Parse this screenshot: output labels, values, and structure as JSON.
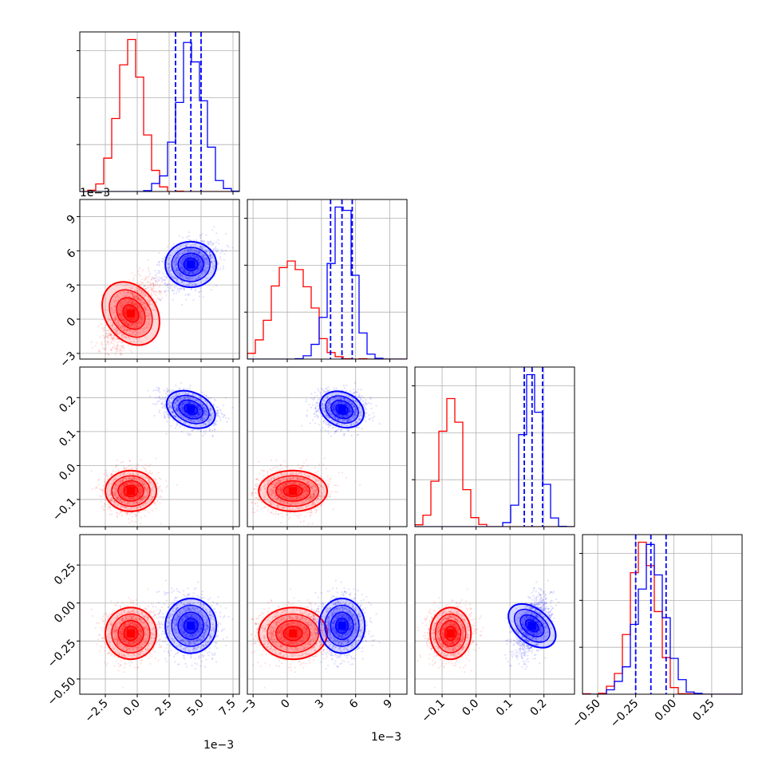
{
  "colors": {
    "red": "#ff0000",
    "blue": "#0000ff",
    "grid": "#b0b0b0",
    "axis": "#000000"
  },
  "chart_data": {
    "type": "corner",
    "grid": true,
    "ndim": 4,
    "params": [
      {
        "range": [
          -0.0045,
          0.008
        ],
        "ticks": [
          -0.0025,
          0.0,
          0.0025,
          0.005,
          0.0075
        ],
        "tick_labels": [
          "−2.5",
          "0.0",
          "2.5",
          "5.0",
          "7.5"
        ],
        "offset_text": "1e−3"
      },
      {
        "range": [
          -0.0035,
          0.0105
        ],
        "ticks": [
          -0.003,
          0.0,
          0.003,
          0.006,
          0.009
        ],
        "tick_labels": [
          "−3",
          "0",
          "3",
          "6",
          "9"
        ],
        "offset_text": "1e−3"
      },
      {
        "range": [
          -0.18,
          0.29
        ],
        "ticks": [
          -0.1,
          0.0,
          0.1,
          0.2
        ],
        "tick_labels": [
          "−0.1",
          "0.0",
          "0.1",
          "0.2"
        ],
        "offset_text": ""
      },
      {
        "range": [
          -0.6,
          0.45
        ],
        "ticks": [
          -0.5,
          -0.25,
          0.0,
          0.25
        ],
        "tick_labels": [
          "−0.50",
          "−0.25",
          "0.00",
          "0.25"
        ],
        "offset_text": ""
      }
    ],
    "series": [
      {
        "name": "",
        "color": "#ff0000",
        "mean": [
          -0.0005,
          0.0005,
          -0.075,
          -0.2
        ],
        "std": [
          0.001,
          0.0015,
          0.03,
          0.085
        ]
      },
      {
        "name": "",
        "color": "#0000ff",
        "mean": [
          0.0042,
          0.0048,
          0.165,
          -0.15
        ],
        "std": [
          0.001,
          0.001,
          0.025,
          0.09
        ]
      }
    ],
    "quantile_lines": [
      {
        "param": 0,
        "color": "#0000ff",
        "values": [
          0.003,
          0.0042,
          0.005
        ]
      },
      {
        "param": 1,
        "color": "#0000ff",
        "values": [
          0.0038,
          0.0048,
          0.0057
        ]
      },
      {
        "param": 2,
        "color": "#0000ff",
        "values": [
          0.142,
          0.165,
          0.196
        ]
      },
      {
        "param": 3,
        "color": "#0000ff",
        "values": [
          -0.25,
          -0.15,
          -0.05
        ]
      }
    ]
  }
}
